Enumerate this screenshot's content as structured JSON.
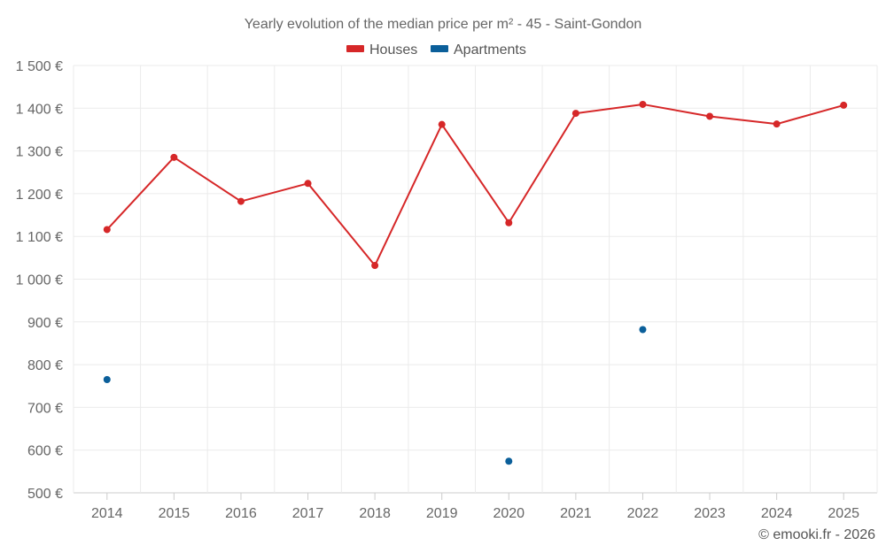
{
  "chart_data": {
    "type": "line",
    "title": "Yearly evolution of the median price per m² - 45 - Saint-Gondon",
    "xlabel": "",
    "ylabel": "",
    "categories": [
      "2014",
      "2015",
      "2016",
      "2017",
      "2018",
      "2019",
      "2020",
      "2021",
      "2022",
      "2023",
      "2024",
      "2025"
    ],
    "ylim": [
      500,
      1500
    ],
    "y_ticks": [
      500,
      600,
      700,
      800,
      900,
      1000,
      1100,
      1200,
      1300,
      1400,
      1500
    ],
    "y_tick_labels": [
      "500 €",
      "600 €",
      "700 €",
      "800 €",
      "900 €",
      "1 000 €",
      "1 100 €",
      "1 200 €",
      "1 300 €",
      "1 400 €",
      "1 500 €"
    ],
    "grid": true,
    "legend_position": "top-center",
    "series": [
      {
        "name": "Houses",
        "color": "#d62728",
        "style": "line-with-markers",
        "values": [
          1116,
          1285,
          1182,
          1224,
          1032,
          1362,
          1132,
          1388,
          1409,
          1381,
          1363,
          1407
        ]
      },
      {
        "name": "Apartments",
        "color": "#0b5f9a",
        "style": "markers",
        "values": [
          765,
          null,
          null,
          null,
          null,
          null,
          574,
          null,
          882,
          null,
          null,
          null
        ]
      }
    ],
    "credit": "© emooki.fr - 2026"
  }
}
